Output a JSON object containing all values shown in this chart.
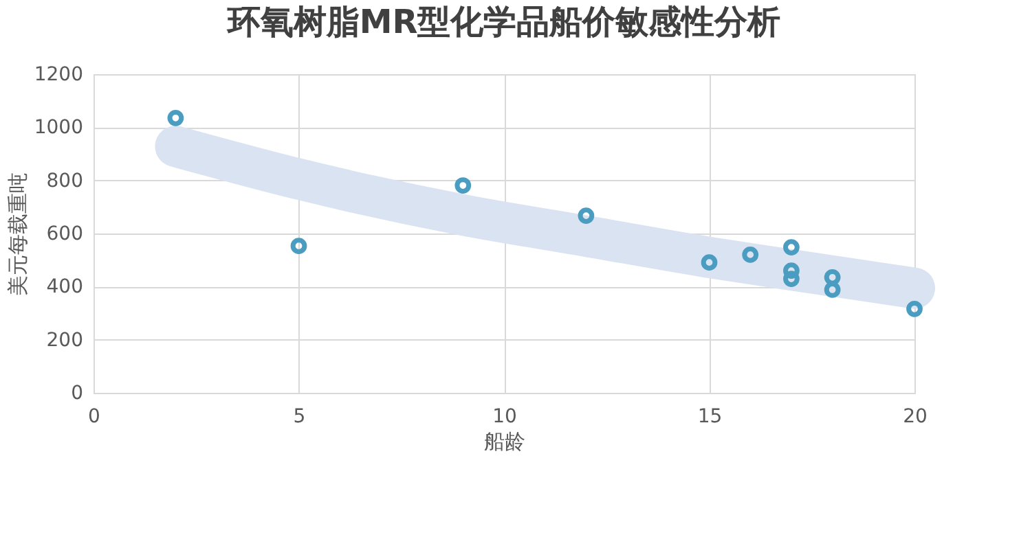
{
  "chart_data": {
    "type": "scatter",
    "title": "环氧树脂MR型化学品船价敏感性分析",
    "xlabel": "船龄",
    "ylabel": "美元每载重吨",
    "xlim": [
      0,
      20
    ],
    "xticks": [
      0,
      5,
      10,
      15,
      20
    ],
    "ylim": [
      0,
      1200
    ],
    "yticks": [
      0,
      200,
      400,
      600,
      800,
      1000,
      1200
    ],
    "grid": true,
    "series": [
      {
        "type": "line",
        "marker": "none",
        "color": "#dae3f1",
        "x": [
          2,
          5,
          9,
          12,
          15,
          17,
          20
        ],
        "values": [
          928,
          805,
          670,
          590,
          510,
          463,
          394
        ]
      },
      {
        "marker": "circle",
        "color": "#4a9cc0",
        "x": [
          2,
          5,
          9,
          12,
          15,
          16,
          17,
          17,
          17,
          18,
          18,
          20
        ],
        "values": [
          1035,
          553,
          781,
          667,
          491,
          520,
          548,
          460,
          429,
          435,
          388,
          316
        ]
      }
    ]
  }
}
